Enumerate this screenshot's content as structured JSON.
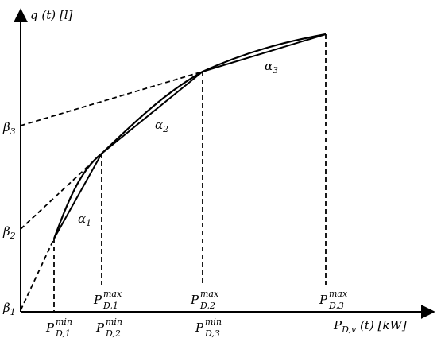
{
  "axes": {
    "y_label": "q (t) [l]",
    "x_label": "P",
    "x_label_sub": "D,v",
    "x_label_tail": " (t) [kW]"
  },
  "betas": [
    {
      "sym": "β",
      "sub": "1"
    },
    {
      "sym": "β",
      "sub": "2"
    },
    {
      "sym": "β",
      "sub": "3"
    }
  ],
  "alphas": [
    {
      "sym": "α",
      "sub": "1"
    },
    {
      "sym": "α",
      "sub": "2"
    },
    {
      "sym": "α",
      "sub": "3"
    }
  ],
  "ticks_min": [
    {
      "sym": "P",
      "sup": "min",
      "sub": "D,1"
    },
    {
      "sym": "P",
      "sup": "min",
      "sub": "D,2"
    },
    {
      "sym": "P",
      "sup": "min",
      "sub": "D,3"
    }
  ],
  "ticks_max": [
    {
      "sym": "P",
      "sup": "max",
      "sub": "D,1"
    },
    {
      "sym": "P",
      "sup": "max",
      "sub": "D,2"
    },
    {
      "sym": "P",
      "sup": "max",
      "sub": "D,3"
    }
  ]
}
